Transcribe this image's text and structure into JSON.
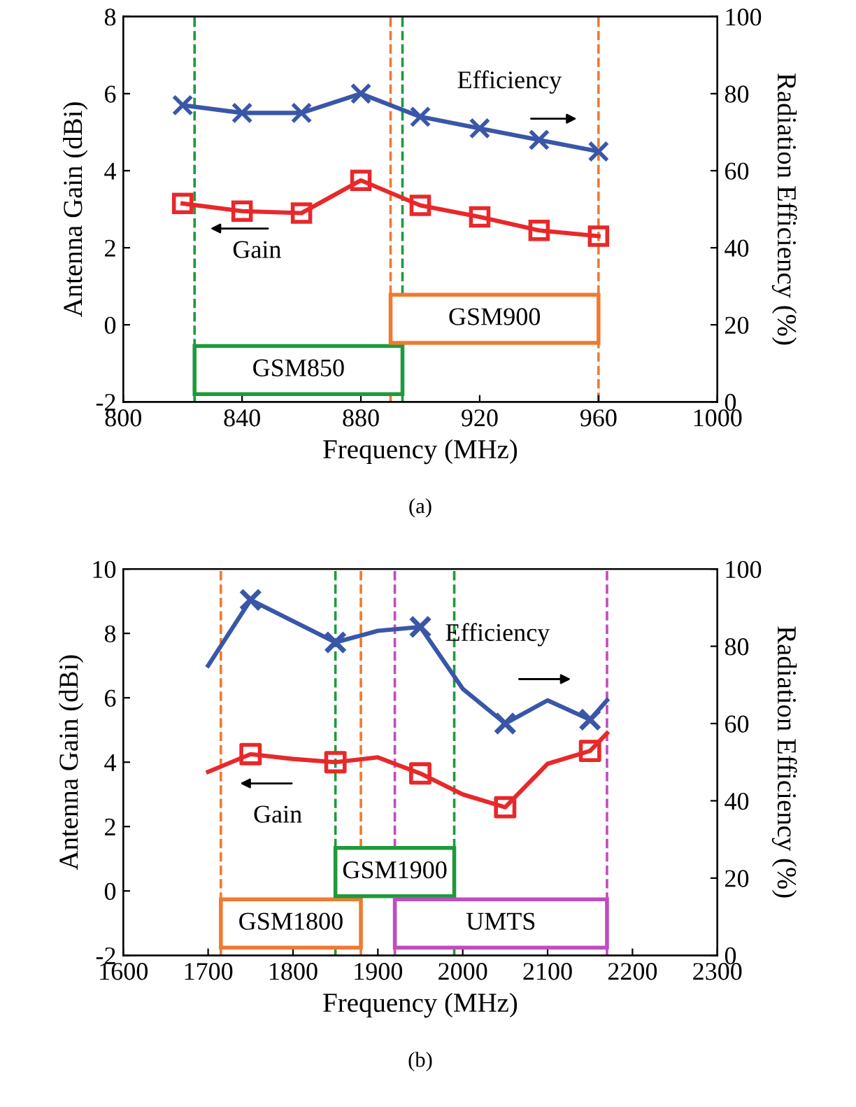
{
  "chart_data": [
    {
      "type": "line",
      "xlabel": "Frequency (MHz)",
      "ylabel": "Antenna Gain (dBi)",
      "y2label": "Radiation Efficiency (%)",
      "xlim": [
        800,
        1000
      ],
      "xticks": [
        800,
        840,
        880,
        920,
        960,
        1000
      ],
      "ylim": [
        -2,
        8
      ],
      "yticks": [
        -2,
        0,
        2,
        4,
        6,
        8
      ],
      "y2lim": [
        0,
        100
      ],
      "y2ticks": [
        0,
        20,
        40,
        60,
        80,
        100
      ],
      "grid": false,
      "series": [
        {
          "color": "#3a56a8",
          "marker": "cross",
          "axis": "y2",
          "x": [
            820,
            840,
            860,
            880,
            900,
            920,
            940,
            960
          ],
          "values": [
            77,
            75,
            75,
            80,
            74,
            71,
            68,
            65
          ]
        },
        {
          "color": "#e8282a",
          "marker": "square",
          "axis": "y",
          "x": [
            820,
            840,
            860,
            880,
            900,
            920,
            940,
            960
          ],
          "values": [
            3.15,
            2.95,
            2.9,
            3.75,
            3.1,
            2.8,
            2.45,
            2.3
          ]
        }
      ],
      "ref_lines": [
        {
          "axis": "x",
          "value": 824,
          "color": "#1e9a3c",
          "line_style": "dashed"
        },
        {
          "axis": "x",
          "value": 894,
          "color": "#1e9a3c",
          "line_style": "dashed"
        },
        {
          "axis": "x",
          "value": 890,
          "color": "#f07a30",
          "line_style": "dashed"
        },
        {
          "axis": "x",
          "value": 960,
          "color": "#f07a30",
          "line_style": "dashed"
        }
      ],
      "bands": [
        {
          "axis": "x",
          "from": 824,
          "to": 894,
          "label": "GSM850",
          "color": "#1e9a3c"
        },
        {
          "axis": "x",
          "from": 890,
          "to": 960,
          "label": "GSM900",
          "color": "#f07a30"
        }
      ],
      "annotations": [
        "Efficiency",
        "Gain",
        "(a)"
      ]
    },
    {
      "type": "line",
      "xlabel": "Frequency (MHz)",
      "ylabel": "Antenna Gain (dBi)",
      "y2label": "Radiation Efficiency (%)",
      "xlim": [
        1600,
        2300
      ],
      "xticks": [
        1600,
        1700,
        1800,
        1900,
        2000,
        2100,
        2200,
        2300
      ],
      "ylim": [
        -2,
        10
      ],
      "yticks": [
        -2,
        0,
        2,
        4,
        6,
        8,
        10
      ],
      "y2lim": [
        0,
        100
      ],
      "y2ticks": [
        0,
        20,
        40,
        60,
        80,
        100
      ],
      "grid": false,
      "series": [
        {
          "color": "#3a56a8",
          "marker": "none",
          "axis": "y2",
          "x": [
            1700,
            1750,
            1850,
            1900,
            1950,
            2000,
            2050,
            2100,
            2150,
            2170
          ],
          "values": [
            75,
            92,
            81,
            84,
            85,
            69,
            60,
            66,
            61,
            66
          ]
        },
        {
          "type": "scatter",
          "color": "#3a56a8",
          "marker": "cross",
          "axis": "y2",
          "x": [
            1750,
            1850,
            1950,
            2050,
            2150
          ],
          "values": [
            92,
            81,
            85,
            60,
            61
          ]
        },
        {
          "color": "#e8282a",
          "marker": "none",
          "axis": "y",
          "x": [
            1700,
            1750,
            1800,
            1850,
            1900,
            1950,
            2000,
            2050,
            2100,
            2150,
            2170
          ],
          "values": [
            3.7,
            4.25,
            4.1,
            4.0,
            4.15,
            3.65,
            3.0,
            2.6,
            3.95,
            4.35,
            4.9
          ]
        },
        {
          "type": "scatter",
          "color": "#e8282a",
          "marker": "square",
          "axis": "y",
          "x": [
            1750,
            1850,
            1950,
            2050,
            2150
          ],
          "values": [
            4.25,
            4.0,
            3.65,
            2.6,
            4.35
          ]
        }
      ],
      "ref_lines": [
        {
          "axis": "x",
          "value": 1715,
          "color": "#f07a30",
          "line_style": "dashed"
        },
        {
          "axis": "x",
          "value": 1880,
          "color": "#f07a30",
          "line_style": "dashed"
        },
        {
          "axis": "x",
          "value": 1850,
          "color": "#1e9a3c",
          "line_style": "dashed"
        },
        {
          "axis": "x",
          "value": 1990,
          "color": "#1e9a3c",
          "line_style": "dashed"
        },
        {
          "axis": "x",
          "value": 1920,
          "color": "#c04cc0",
          "line_style": "dashed"
        },
        {
          "axis": "x",
          "value": 2170,
          "color": "#c04cc0",
          "line_style": "dashed"
        }
      ],
      "bands": [
        {
          "axis": "x",
          "from": 1715,
          "to": 1880,
          "label": "GSM1800",
          "color": "#f07a30"
        },
        {
          "axis": "x",
          "from": 1850,
          "to": 1990,
          "label": "GSM1900",
          "color": "#1e9a3c"
        },
        {
          "axis": "x",
          "from": 1920,
          "to": 2170,
          "label": "UMTS",
          "color": "#c04cc0"
        }
      ],
      "annotations": [
        "Efficiency",
        "Gain",
        "(b)"
      ]
    }
  ]
}
